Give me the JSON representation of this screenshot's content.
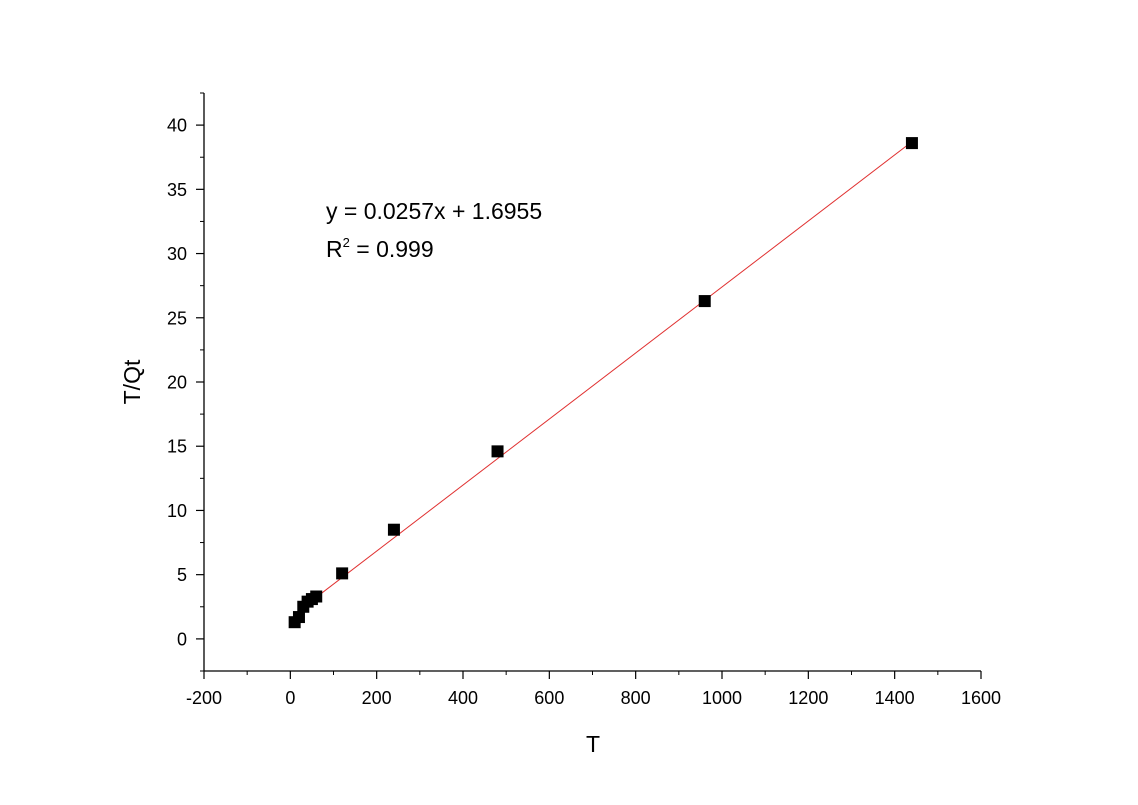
{
  "chart_data": {
    "type": "scatter",
    "title": "",
    "xlabel": "T",
    "ylabel": "T/Qt",
    "xlim": [
      -200,
      1600
    ],
    "ylim": [
      -2.5,
      42.5
    ],
    "x_ticks": [
      -200,
      0,
      200,
      400,
      600,
      800,
      1000,
      1200,
      1400,
      1600
    ],
    "y_ticks": [
      0,
      5,
      10,
      15,
      20,
      25,
      30,
      35,
      40
    ],
    "x_tick_labels": [
      "-200",
      "0",
      "200",
      "400",
      "600",
      "800",
      "1000",
      "1200",
      "1400",
      "1600"
    ],
    "y_tick_labels": [
      "0",
      "5",
      "10",
      "15",
      "20",
      "25",
      "30",
      "35",
      "40"
    ],
    "grid": false,
    "series": [
      {
        "marker": "square",
        "color": "#000000",
        "x": [
          10,
          20,
          30,
          40,
          50,
          60,
          120,
          240,
          480,
          960,
          1440
        ],
        "y": [
          1.3,
          1.7,
          2.5,
          2.9,
          3.1,
          3.3,
          5.1,
          8.5,
          14.6,
          26.3,
          38.6
        ]
      }
    ],
    "fit_line": {
      "slope": 0.0257,
      "intercept": 1.6955,
      "x_range": [
        10,
        1440
      ],
      "color": "#e03030"
    },
    "annotation": {
      "equation": "y = 0.0257x + 1.6955",
      "r_prefix": "R",
      "r_sup": "2",
      "r_suffix": " = 0.999"
    }
  }
}
